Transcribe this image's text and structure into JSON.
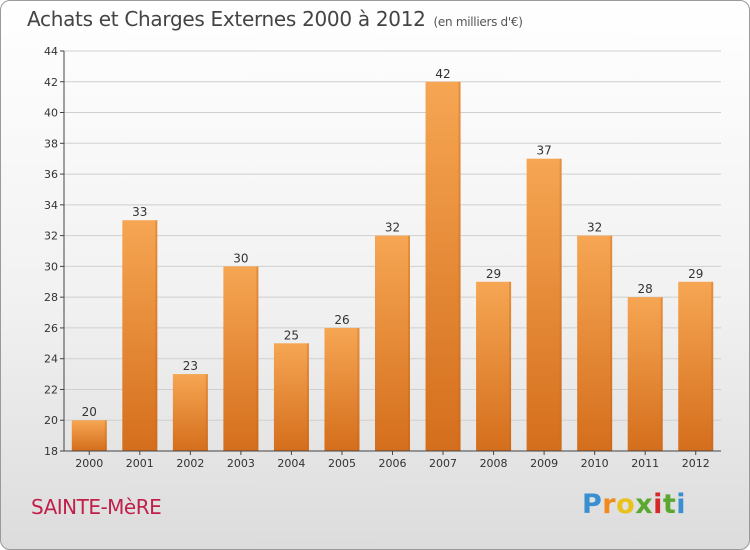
{
  "header": {
    "title": "Achats et Charges Externes 2000 à 2012",
    "unit": "(en milliers d'€)"
  },
  "footer": {
    "place": "SAINTE-MèRE",
    "logo_letters": [
      "P",
      "r",
      "o",
      "x",
      "i",
      "t",
      "i"
    ],
    "logo_colors": [
      "#3a8fd0",
      "#f08a1c",
      "#e8c21a",
      "#5aa830",
      "#d42a2a",
      "#5aa830",
      "#3a8fd0"
    ]
  },
  "colors": {
    "bar_top": "#f6a653",
    "bar_bottom": "#d46e1c",
    "grid": "#cfcfcf",
    "axis": "#444444"
  },
  "chart_data": {
    "type": "bar",
    "title": "Achats et Charges Externes 2000 à 2012",
    "subtitle": "(en milliers d'€)",
    "categories": [
      "2000",
      "2001",
      "2002",
      "2003",
      "2004",
      "2005",
      "2006",
      "2007",
      "2008",
      "2009",
      "2010",
      "2011",
      "2012"
    ],
    "values": [
      20,
      33,
      23,
      30,
      25,
      26,
      32,
      42,
      29,
      37,
      32,
      28,
      29
    ],
    "ylim": [
      18,
      44
    ],
    "yticks": [
      18,
      20,
      22,
      24,
      26,
      28,
      30,
      32,
      34,
      36,
      38,
      40,
      42,
      44
    ],
    "grid": true
  }
}
